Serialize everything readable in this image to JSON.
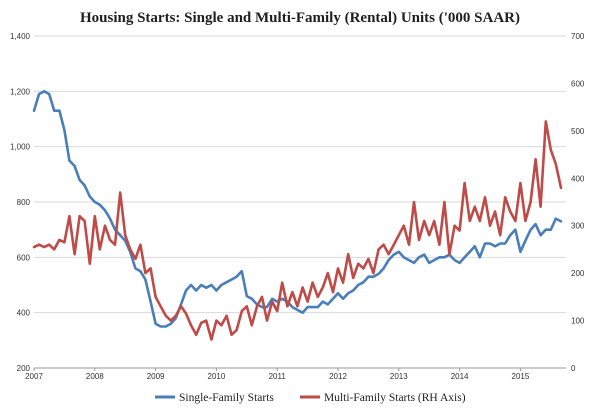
{
  "chart_data": {
    "type": "line",
    "title": "Housing Starts: Single and Multi-Family (Rental) Units  ('000 SAAR)",
    "x_tick_labels": [
      "2007",
      "2008",
      "2009",
      "2010",
      "2011",
      "2012",
      "2013",
      "2014",
      "2015"
    ],
    "y_left": {
      "ticks": [
        200,
        400,
        600,
        800,
        1000,
        1200,
        1400
      ],
      "tick_labels": [
        "200",
        "400",
        "600",
        "800",
        "1,000",
        "1,200",
        "1,400"
      ],
      "range": [
        200,
        1400
      ]
    },
    "y_right": {
      "ticks": [
        0,
        100,
        200,
        300,
        400,
        500,
        600,
        700
      ],
      "tick_labels": [
        "0",
        "100",
        "200",
        "300",
        "400",
        "500",
        "600",
        "700"
      ],
      "range": [
        0,
        700
      ]
    },
    "x_range": [
      2007.0,
      2015.75
    ],
    "grid": true,
    "legend_position": "bottom",
    "series": [
      {
        "name": "Single-Family Starts",
        "axis": "left",
        "color": "#4a7ebb",
        "x": [
          2007.0,
          2007.083,
          2007.167,
          2007.25,
          2007.333,
          2007.417,
          2007.5,
          2007.583,
          2007.667,
          2007.75,
          2007.833,
          2007.917,
          2008.0,
          2008.083,
          2008.167,
          2008.25,
          2008.333,
          2008.417,
          2008.5,
          2008.583,
          2008.667,
          2008.75,
          2008.833,
          2008.917,
          2009.0,
          2009.083,
          2009.167,
          2009.25,
          2009.333,
          2009.417,
          2009.5,
          2009.583,
          2009.667,
          2009.75,
          2009.833,
          2009.917,
          2010.0,
          2010.083,
          2010.167,
          2010.25,
          2010.333,
          2010.417,
          2010.5,
          2010.583,
          2010.667,
          2010.75,
          2010.833,
          2010.917,
          2011.0,
          2011.083,
          2011.167,
          2011.25,
          2011.333,
          2011.417,
          2011.5,
          2011.583,
          2011.667,
          2011.75,
          2011.833,
          2011.917,
          2012.0,
          2012.083,
          2012.167,
          2012.25,
          2012.333,
          2012.417,
          2012.5,
          2012.583,
          2012.667,
          2012.75,
          2012.833,
          2012.917,
          2013.0,
          2013.083,
          2013.167,
          2013.25,
          2013.333,
          2013.417,
          2013.5,
          2013.583,
          2013.667,
          2013.75,
          2013.833,
          2013.917,
          2014.0,
          2014.083,
          2014.167,
          2014.25,
          2014.333,
          2014.417,
          2014.5,
          2014.583,
          2014.667,
          2014.75,
          2014.833,
          2014.917,
          2015.0,
          2015.083,
          2015.167,
          2015.25,
          2015.333,
          2015.417,
          2015.5,
          2015.583,
          2015.667
        ],
        "values": [
          1130,
          1190,
          1200,
          1190,
          1130,
          1130,
          1060,
          950,
          930,
          880,
          860,
          820,
          800,
          790,
          770,
          740,
          700,
          680,
          660,
          620,
          560,
          550,
          520,
          440,
          360,
          350,
          350,
          360,
          380,
          430,
          480,
          500,
          480,
          500,
          490,
          500,
          480,
          500,
          510,
          520,
          530,
          550,
          460,
          450,
          430,
          420,
          420,
          450,
          440,
          450,
          440,
          420,
          410,
          400,
          420,
          420,
          420,
          440,
          430,
          450,
          470,
          450,
          470,
          480,
          500,
          510,
          530,
          530,
          540,
          560,
          590,
          610,
          620,
          600,
          590,
          580,
          600,
          610,
          580,
          590,
          600,
          600,
          610,
          590,
          580,
          600,
          620,
          640,
          600,
          650,
          650,
          640,
          650,
          650,
          680,
          700,
          620,
          660,
          700,
          720,
          680,
          700,
          700,
          740,
          730
        ]
      },
      {
        "name": "Multi-Family Starts (RH Axis)",
        "axis": "right",
        "color": "#be4b48",
        "x": [
          2007.0,
          2007.083,
          2007.167,
          2007.25,
          2007.333,
          2007.417,
          2007.5,
          2007.583,
          2007.667,
          2007.75,
          2007.833,
          2007.917,
          2008.0,
          2008.083,
          2008.167,
          2008.25,
          2008.333,
          2008.417,
          2008.5,
          2008.583,
          2008.667,
          2008.75,
          2008.833,
          2008.917,
          2009.0,
          2009.083,
          2009.167,
          2009.25,
          2009.333,
          2009.417,
          2009.5,
          2009.583,
          2009.667,
          2009.75,
          2009.833,
          2009.917,
          2010.0,
          2010.083,
          2010.167,
          2010.25,
          2010.333,
          2010.417,
          2010.5,
          2010.583,
          2010.667,
          2010.75,
          2010.833,
          2010.917,
          2011.0,
          2011.083,
          2011.167,
          2011.25,
          2011.333,
          2011.417,
          2011.5,
          2011.583,
          2011.667,
          2011.75,
          2011.833,
          2011.917,
          2012.0,
          2012.083,
          2012.167,
          2012.25,
          2012.333,
          2012.417,
          2012.5,
          2012.583,
          2012.667,
          2012.75,
          2012.833,
          2012.917,
          2013.0,
          2013.083,
          2013.167,
          2013.25,
          2013.333,
          2013.417,
          2013.5,
          2013.583,
          2013.667,
          2013.75,
          2013.833,
          2013.917,
          2014.0,
          2014.083,
          2014.167,
          2014.25,
          2014.333,
          2014.417,
          2014.5,
          2014.583,
          2014.667,
          2014.75,
          2014.833,
          2014.917,
          2015.0,
          2015.083,
          2015.167,
          2015.25,
          2015.333,
          2015.417,
          2015.5,
          2015.583,
          2015.667
        ],
        "values": [
          255,
          260,
          255,
          260,
          250,
          270,
          265,
          320,
          240,
          320,
          310,
          220,
          320,
          250,
          300,
          270,
          260,
          370,
          280,
          250,
          230,
          260,
          200,
          210,
          150,
          130,
          110,
          100,
          110,
          130,
          115,
          90,
          70,
          95,
          100,
          60,
          100,
          90,
          110,
          70,
          80,
          120,
          130,
          90,
          130,
          150,
          100,
          140,
          120,
          180,
          130,
          160,
          130,
          170,
          140,
          180,
          150,
          170,
          200,
          160,
          210,
          180,
          240,
          190,
          220,
          210,
          230,
          200,
          250,
          260,
          240,
          260,
          280,
          300,
          260,
          350,
          270,
          310,
          280,
          310,
          260,
          350,
          240,
          300,
          290,
          390,
          310,
          340,
          310,
          360,
          300,
          330,
          280,
          360,
          330,
          310,
          390,
          310,
          350,
          440,
          340,
          520,
          460,
          430,
          380
        ]
      }
    ]
  }
}
